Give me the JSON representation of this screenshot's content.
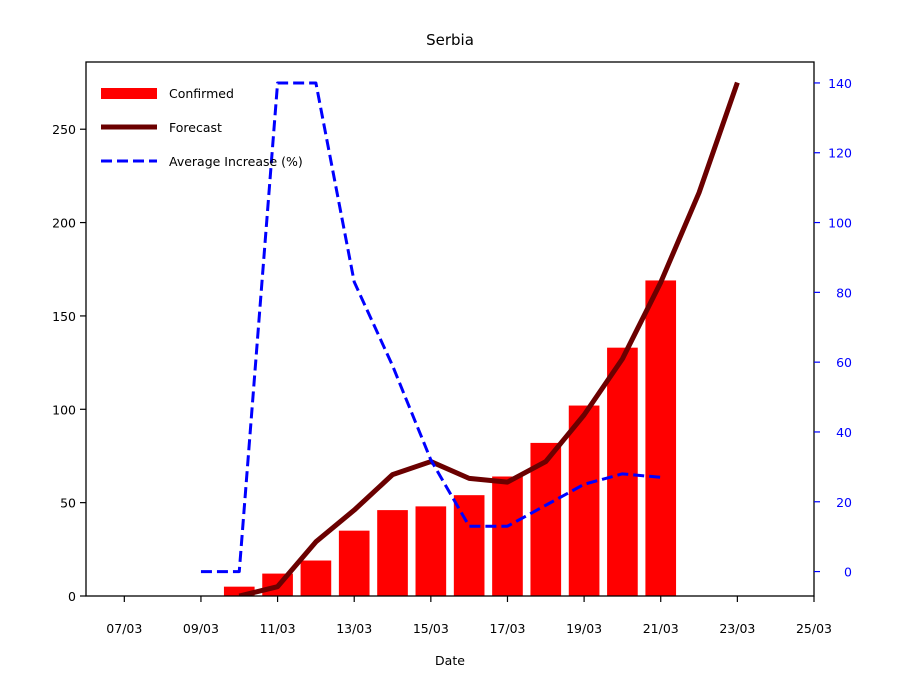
{
  "chart_data": {
    "type": "bar",
    "title": "Serbia",
    "xlabel": "Date",
    "ylabel": "",
    "y2label": "",
    "x_ticks": [
      "07/03",
      "09/03",
      "11/03",
      "13/03",
      "15/03",
      "17/03",
      "19/03",
      "21/03",
      "23/03",
      "25/03"
    ],
    "y_ticks": [
      0,
      50,
      100,
      150,
      200,
      250
    ],
    "y2_ticks": [
      0,
      20,
      40,
      60,
      80,
      100,
      120,
      140
    ],
    "xlim": [
      "06/03",
      "25/03"
    ],
    "ylim": [
      0,
      286
    ],
    "y2lim": [
      -7,
      146
    ],
    "grid": false,
    "legend_position": "top-left",
    "series": [
      {
        "name": "Confirmed",
        "kind": "bar",
        "axis": "left",
        "color": "#ff0000",
        "x": [
          "10/03",
          "11/03",
          "12/03",
          "13/03",
          "14/03",
          "15/03",
          "16/03",
          "17/03",
          "18/03",
          "19/03",
          "20/03",
          "21/03"
        ],
        "values": [
          5,
          12,
          19,
          35,
          46,
          48,
          54,
          64,
          82,
          102,
          133,
          169
        ]
      },
      {
        "name": "Forecast",
        "kind": "line",
        "axis": "left",
        "color": "#6b0000",
        "x": [
          "10/03",
          "11/03",
          "12/03",
          "13/03",
          "14/03",
          "15/03",
          "16/03",
          "17/03",
          "18/03",
          "19/03",
          "20/03",
          "21/03",
          "22/03",
          "23/03"
        ],
        "values": [
          0,
          5,
          29,
          46,
          65,
          72,
          63,
          61,
          72,
          97,
          127,
          168,
          216,
          275
        ]
      },
      {
        "name": "Average Increase (%)",
        "kind": "line",
        "style": "dashed",
        "axis": "right",
        "color": "#0000ff",
        "x": [
          "09/03",
          "10/03",
          "11/03",
          "12/03",
          "13/03",
          "14/03",
          "15/03",
          "16/03",
          "17/03",
          "18/03",
          "19/03",
          "20/03",
          "21/03"
        ],
        "values": [
          0,
          0,
          140,
          140,
          83,
          59,
          32,
          13,
          13,
          19,
          25,
          28,
          27
        ]
      }
    ]
  }
}
